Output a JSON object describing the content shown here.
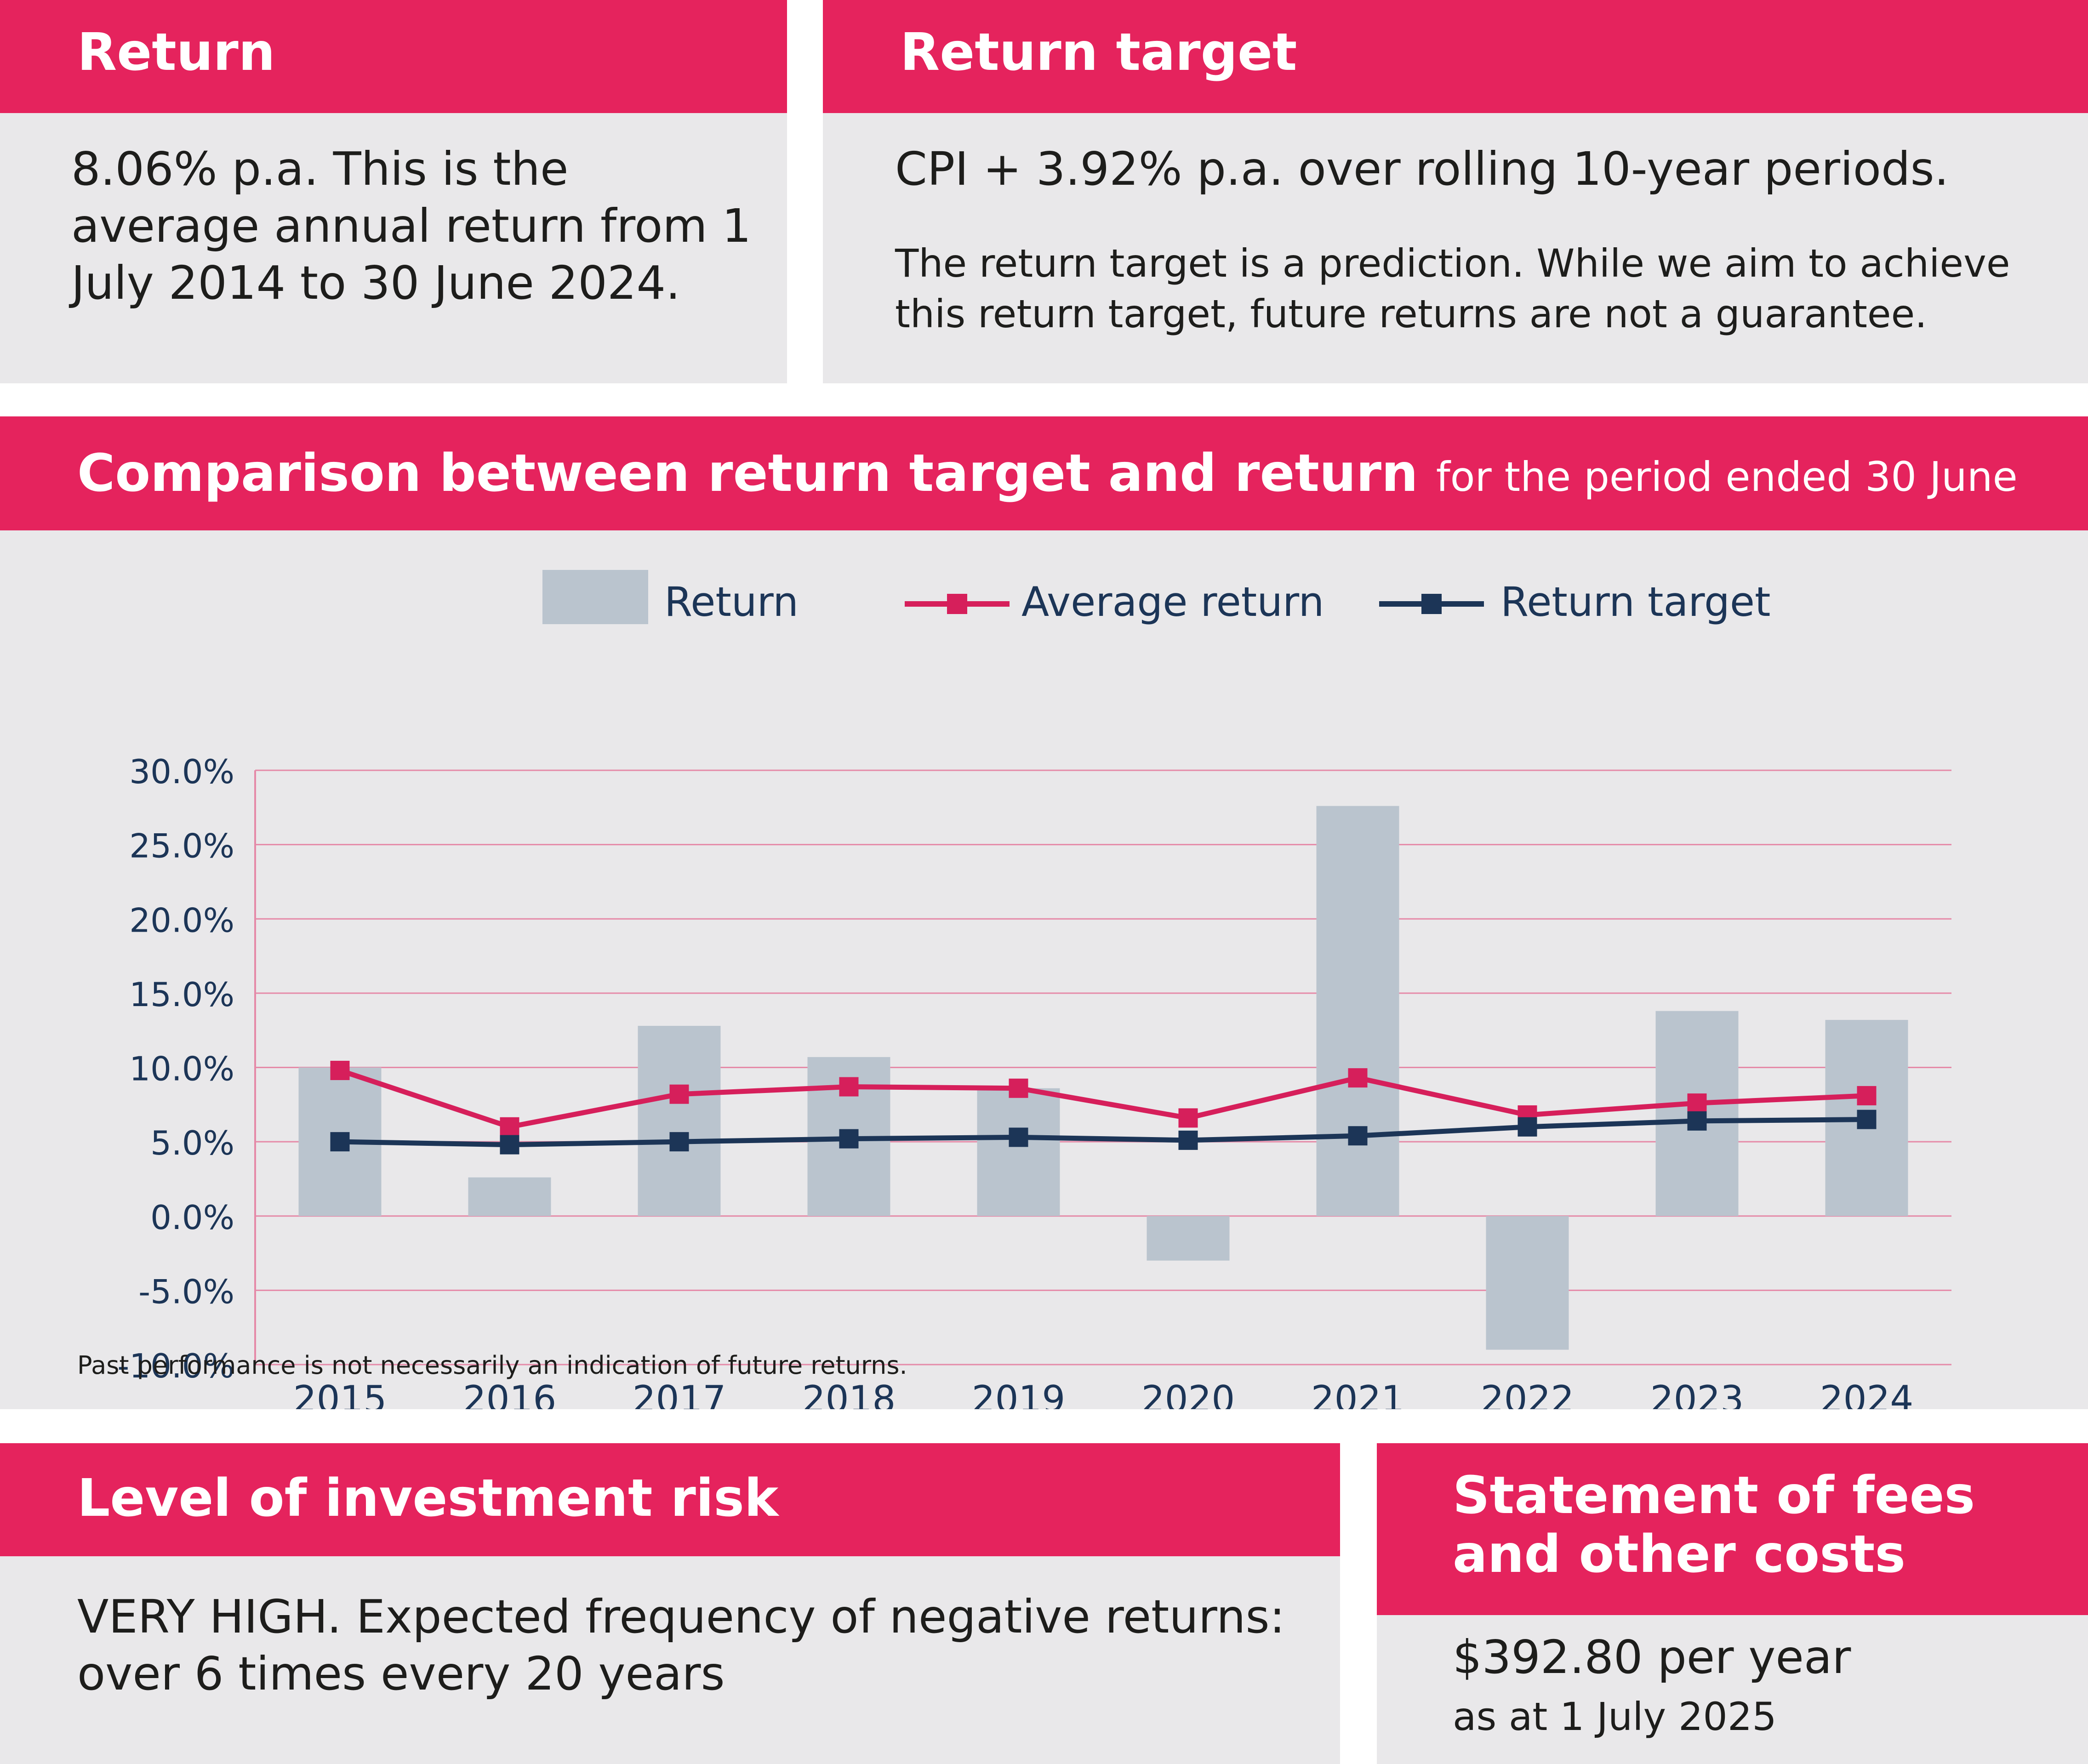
{
  "return_card": {
    "title": "Return",
    "body": "8.06% p.a. This is the average annual return from 1 July 2014 to 30 June 2024."
  },
  "target_card": {
    "title": "Return target",
    "body": "CPI + 3.92% p.a. over rolling 10-year periods.",
    "note": "The return target is a prediction. While we aim to achieve this return target, future returns are not a guarantee."
  },
  "comparison": {
    "title": "Comparison between return target and return",
    "subtitle": "for the period ended 30 June",
    "footnote": "Past performance is not necessarily an indication of future returns."
  },
  "risk_card": {
    "title": "Level of investment risk",
    "body": "VERY HIGH. Expected frequency of negative returns: over 6 times every 20 years"
  },
  "fees_card": {
    "title": "Statement of fees and other costs",
    "amount": "$392.80 per year",
    "date": "as at 1 July 2025"
  },
  "colors": {
    "brand": "#e5235d",
    "panel": "#e9e8ea",
    "bar": "#bac4ce",
    "average_line": "#d61f5b",
    "target_line": "#1c3557",
    "axis_text": "#1c3557",
    "grid": "#e58aa8"
  },
  "chart_data": {
    "type": "bar",
    "title": "Comparison between return target and return",
    "categories": [
      "2015",
      "2016",
      "2017",
      "2018",
      "2019",
      "2020",
      "2021",
      "2022",
      "2023",
      "2024"
    ],
    "ylim": [
      -10,
      30
    ],
    "yticks": [
      -10,
      -5,
      0,
      5,
      10,
      15,
      20,
      25,
      30
    ],
    "ytick_labels": [
      "-10.0%",
      "-5.0%",
      "0.0%",
      "5.0%",
      "10.0%",
      "15.0%",
      "20.0%",
      "25.0%",
      "30.0%"
    ],
    "grid": true,
    "legend": "top-center",
    "series": [
      {
        "name": "Return",
        "kind": "bar",
        "values": [
          10.0,
          2.6,
          12.8,
          10.7,
          8.6,
          -3.0,
          27.6,
          -9.0,
          13.8,
          13.2
        ]
      },
      {
        "name": "Average return",
        "kind": "line",
        "values": [
          9.8,
          6.0,
          8.2,
          8.7,
          8.6,
          6.6,
          9.3,
          6.8,
          7.6,
          8.1
        ]
      },
      {
        "name": "Return target",
        "kind": "line",
        "values": [
          5.0,
          4.8,
          5.0,
          5.2,
          5.3,
          5.1,
          5.4,
          6.0,
          6.4,
          6.5
        ]
      }
    ]
  }
}
